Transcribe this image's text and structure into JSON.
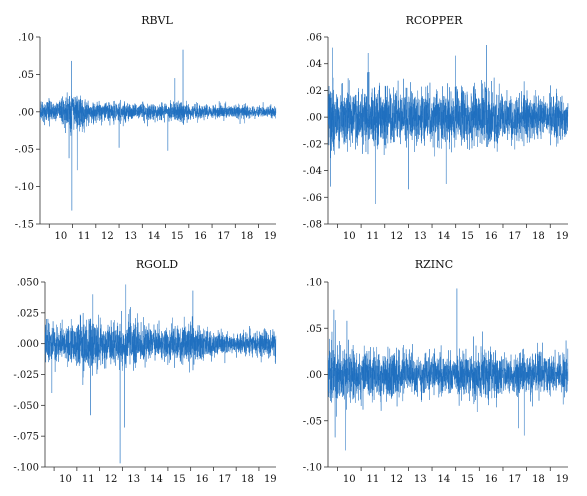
{
  "colors": {
    "series": "#1f6fbf",
    "axis": "#333333",
    "background": "#ffffff"
  },
  "chart_data": [
    {
      "type": "line",
      "title": "RBVL",
      "x_range": [
        2009.6,
        2019.75
      ],
      "x_tick_labels": [
        "10",
        "11",
        "12",
        "13",
        "14",
        "15",
        "16",
        "17",
        "18",
        "19"
      ],
      "ylim": [
        -0.15,
        0.1
      ],
      "y_ticks": [
        0.1,
        0.05,
        0.0,
        -0.05,
        -0.1,
        -0.15
      ],
      "y_tick_labels": [
        ".10",
        ".05",
        ".00",
        "-.05",
        "-.10",
        "-.15"
      ],
      "volatility_profile": [
        [
          2009.6,
          0.01
        ],
        [
          2010.3,
          0.008
        ],
        [
          2010.6,
          0.013
        ],
        [
          2011.0,
          0.018
        ],
        [
          2011.6,
          0.011
        ],
        [
          2012.2,
          0.008
        ],
        [
          2013.0,
          0.009
        ],
        [
          2014.0,
          0.007
        ],
        [
          2015.0,
          0.007
        ],
        [
          2015.6,
          0.01
        ],
        [
          2016.0,
          0.007
        ],
        [
          2017.0,
          0.005
        ],
        [
          2018.0,
          0.006
        ],
        [
          2019.0,
          0.005
        ],
        [
          2019.75,
          0.005
        ]
      ],
      "notable_points": [
        {
          "x": 2010.95,
          "y": 0.068
        },
        {
          "x": 2010.97,
          "y": -0.132
        },
        {
          "x": 2011.2,
          "y": -0.078
        },
        {
          "x": 2010.85,
          "y": -0.062
        },
        {
          "x": 2015.75,
          "y": 0.083
        },
        {
          "x": 2015.4,
          "y": 0.045
        },
        {
          "x": 2015.1,
          "y": -0.052
        },
        {
          "x": 2013.0,
          "y": -0.048
        }
      ]
    },
    {
      "type": "line",
      "title": "RCOPPER",
      "x_range": [
        2009.6,
        2019.75
      ],
      "x_tick_labels": [
        "10",
        "11",
        "12",
        "13",
        "14",
        "15",
        "16",
        "17",
        "18",
        "19"
      ],
      "ylim": [
        -0.08,
        0.06
      ],
      "y_ticks": [
        0.06,
        0.04,
        0.02,
        0.0,
        -0.02,
        -0.04,
        -0.06,
        -0.08
      ],
      "y_tick_labels": [
        ".06",
        ".04",
        ".02",
        ".00",
        "-.02",
        "-.04",
        "-.06",
        "-.08"
      ],
      "volatility_profile": [
        [
          2009.6,
          0.02
        ],
        [
          2010.4,
          0.015
        ],
        [
          2011.0,
          0.014
        ],
        [
          2011.7,
          0.018
        ],
        [
          2012.3,
          0.013
        ],
        [
          2013.0,
          0.012
        ],
        [
          2013.5,
          0.014
        ],
        [
          2014.2,
          0.011
        ],
        [
          2015.0,
          0.014
        ],
        [
          2015.8,
          0.013
        ],
        [
          2016.3,
          0.015
        ],
        [
          2017.0,
          0.012
        ],
        [
          2018.0,
          0.011
        ],
        [
          2019.0,
          0.01
        ],
        [
          2019.75,
          0.01
        ]
      ],
      "notable_points": [
        {
          "x": 2011.6,
          "y": -0.065
        },
        {
          "x": 2016.3,
          "y": 0.054
        },
        {
          "x": 2009.8,
          "y": 0.052
        },
        {
          "x": 2011.3,
          "y": 0.048
        },
        {
          "x": 2009.7,
          "y": -0.052
        },
        {
          "x": 2013.0,
          "y": -0.054
        },
        {
          "x": 2015.0,
          "y": 0.046
        },
        {
          "x": 2014.6,
          "y": -0.05
        }
      ]
    },
    {
      "type": "line",
      "title": "RGOLD",
      "x_range": [
        2009.6,
        2019.75
      ],
      "x_tick_labels": [
        "10",
        "11",
        "12",
        "13",
        "14",
        "15",
        "16",
        "17",
        "18",
        "19"
      ],
      "ylim": [
        -0.1,
        0.05
      ],
      "y_ticks": [
        0.05,
        0.025,
        0.0,
        -0.025,
        -0.05,
        -0.075,
        -0.1
      ],
      "y_tick_labels": [
        ".050",
        ".025",
        ".000",
        "-.025",
        "-.050",
        "-.075",
        "-.100"
      ],
      "volatility_profile": [
        [
          2009.6,
          0.011
        ],
        [
          2010.5,
          0.009
        ],
        [
          2011.0,
          0.012
        ],
        [
          2011.7,
          0.015
        ],
        [
          2012.3,
          0.01
        ],
        [
          2013.0,
          0.012
        ],
        [
          2013.5,
          0.015
        ],
        [
          2014.0,
          0.009
        ],
        [
          2015.0,
          0.009
        ],
        [
          2016.0,
          0.011
        ],
        [
          2016.5,
          0.009
        ],
        [
          2017.0,
          0.007
        ],
        [
          2018.0,
          0.005
        ],
        [
          2019.0,
          0.007
        ],
        [
          2019.75,
          0.008
        ]
      ],
      "notable_points": [
        {
          "x": 2012.9,
          "y": -0.097
        },
        {
          "x": 2013.1,
          "y": -0.068
        },
        {
          "x": 2011.6,
          "y": -0.058
        },
        {
          "x": 2013.15,
          "y": 0.048
        },
        {
          "x": 2011.7,
          "y": 0.04
        },
        {
          "x": 2016.1,
          "y": 0.043
        },
        {
          "x": 2009.9,
          "y": -0.04
        }
      ]
    },
    {
      "type": "line",
      "title": "RZINC",
      "x_range": [
        2009.6,
        2019.75
      ],
      "x_tick_labels": [
        "10",
        "11",
        "12",
        "13",
        "14",
        "15",
        "16",
        "17",
        "18",
        "19"
      ],
      "ylim": [
        -0.1,
        0.1
      ],
      "y_ticks": [
        0.1,
        0.05,
        0.0,
        -0.05,
        -0.1
      ],
      "y_tick_labels": [
        ".10",
        ".05",
        ".00",
        "-.05",
        "-.10"
      ],
      "volatility_profile": [
        [
          2009.6,
          0.022
        ],
        [
          2010.4,
          0.02
        ],
        [
          2011.0,
          0.016
        ],
        [
          2011.7,
          0.019
        ],
        [
          2012.5,
          0.015
        ],
        [
          2013.0,
          0.014
        ],
        [
          2014.0,
          0.012
        ],
        [
          2015.0,
          0.015
        ],
        [
          2015.6,
          0.017
        ],
        [
          2016.3,
          0.017
        ],
        [
          2017.0,
          0.014
        ],
        [
          2018.0,
          0.015
        ],
        [
          2019.0,
          0.014
        ],
        [
          2019.75,
          0.015
        ]
      ],
      "notable_points": [
        {
          "x": 2015.05,
          "y": 0.093
        },
        {
          "x": 2010.35,
          "y": -0.082
        },
        {
          "x": 2009.9,
          "y": -0.068
        },
        {
          "x": 2009.85,
          "y": 0.07
        },
        {
          "x": 2017.9,
          "y": -0.066
        },
        {
          "x": 2010.4,
          "y": 0.058
        }
      ]
    }
  ]
}
